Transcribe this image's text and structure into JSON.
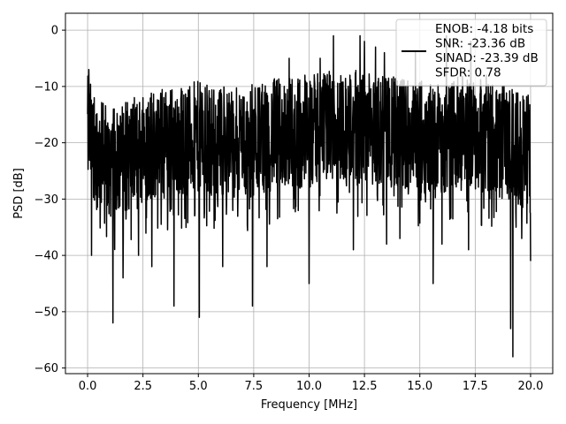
{
  "chart_data": {
    "type": "line",
    "title": "",
    "xlabel": "Frequency [MHz]",
    "ylabel": "PSD [dB]",
    "xlim": [
      -1.0,
      21.0
    ],
    "ylim": [
      -61.0,
      3.0
    ],
    "xticks": [
      "0.0",
      "2.5",
      "5.0",
      "7.5",
      "10.0",
      "12.5",
      "15.0",
      "17.5",
      "20.0"
    ],
    "xtick_values": [
      0,
      2.5,
      5,
      7.5,
      10,
      12.5,
      15,
      17.5,
      20
    ],
    "yticks": [
      "0",
      "−10",
      "−20",
      "−30",
      "−40",
      "−50",
      "−60"
    ],
    "ytick_values": [
      0,
      -10,
      -20,
      -30,
      -40,
      -50,
      -60
    ],
    "grid": true,
    "legend_position": "upper-right",
    "legend": {
      "lines": [
        "ENOB: -4.18 bits",
        "SNR: -23.36 dB",
        "SINAD: -23.39 dB",
        "SFDR: 0.78"
      ]
    },
    "series": [
      {
        "color": "#000000",
        "x_range": [
          0,
          20
        ],
        "baseline": [
          [
            0,
            -18
          ],
          [
            0.5,
            -22
          ],
          [
            1.0,
            -24
          ],
          [
            1.5,
            -23
          ],
          [
            2.0,
            -22
          ],
          [
            3.0,
            -20
          ],
          [
            4.0,
            -20
          ],
          [
            5.0,
            -19
          ],
          [
            6.0,
            -20
          ],
          [
            7.0,
            -20
          ],
          [
            8.0,
            -19
          ],
          [
            9.0,
            -18
          ],
          [
            10.0,
            -18
          ],
          [
            11.0,
            -17
          ],
          [
            12.0,
            -17
          ],
          [
            13.0,
            -18
          ],
          [
            14.0,
            -18
          ],
          [
            15.0,
            -19
          ],
          [
            16.0,
            -19
          ],
          [
            17.0,
            -18
          ],
          [
            18.0,
            -19
          ],
          [
            19.0,
            -20
          ],
          [
            20.0,
            -21
          ]
        ],
        "peaks": [
          [
            0.05,
            -7
          ],
          [
            0.3,
            -12
          ],
          [
            0.7,
            -13
          ],
          [
            1.2,
            -14
          ],
          [
            2.5,
            -12
          ],
          [
            4.5,
            -12
          ],
          [
            6.5,
            -11
          ],
          [
            8.5,
            -10
          ],
          [
            9.1,
            -5
          ],
          [
            10.5,
            -5
          ],
          [
            11.1,
            -1
          ],
          [
            12.3,
            -1
          ],
          [
            12.5,
            -2
          ],
          [
            13.0,
            -3
          ],
          [
            13.4,
            -4
          ],
          [
            14.8,
            -4
          ],
          [
            16.2,
            -1
          ],
          [
            17.3,
            -2
          ],
          [
            18.0,
            -8
          ],
          [
            18.8,
            -10
          ],
          [
            19.6,
            -11
          ],
          [
            20.0,
            -13
          ]
        ],
        "dips": [
          [
            0.18,
            -40
          ],
          [
            1.15,
            -52
          ],
          [
            1.6,
            -44
          ],
          [
            2.3,
            -40
          ],
          [
            2.9,
            -42
          ],
          [
            3.9,
            -49
          ],
          [
            5.05,
            -51
          ],
          [
            6.1,
            -42
          ],
          [
            7.45,
            -49
          ],
          [
            8.1,
            -42
          ],
          [
            10.0,
            -45
          ],
          [
            12.0,
            -39
          ],
          [
            13.5,
            -38
          ],
          [
            14.1,
            -37
          ],
          [
            15.6,
            -45
          ],
          [
            16.0,
            -38
          ],
          [
            17.2,
            -39
          ],
          [
            19.1,
            -53
          ],
          [
            19.2,
            -58
          ],
          [
            19.6,
            -37
          ],
          [
            20.0,
            -41
          ]
        ]
      }
    ]
  }
}
